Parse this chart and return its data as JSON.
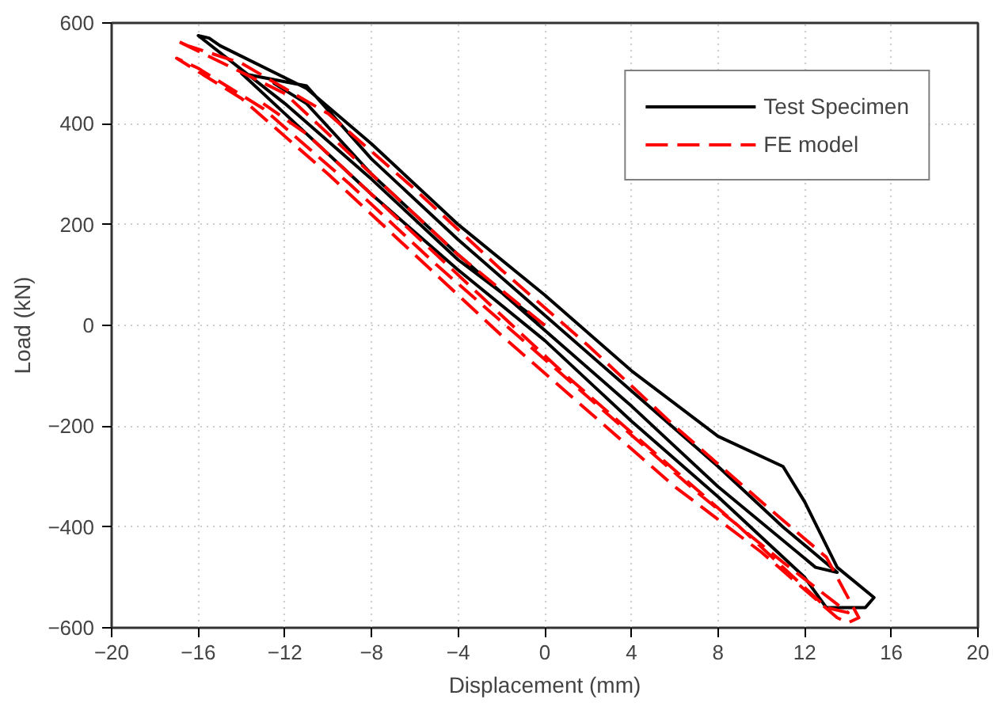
{
  "chart_data": {
    "type": "line",
    "xlabel": "Displacement (mm)",
    "ylabel": "Load (kN)",
    "xlim": [
      -20,
      20
    ],
    "ylim": [
      -600,
      600
    ],
    "xticks": [
      -20,
      -16,
      -12,
      -8,
      -4,
      0,
      4,
      8,
      12,
      16,
      20
    ],
    "yticks": [
      -600,
      -400,
      -200,
      0,
      200,
      400,
      600
    ],
    "grid": true,
    "legend": "top right",
    "series": [
      {
        "name": "Test Specimen",
        "color": "#000000",
        "line_style": "solid",
        "x": [
          0,
          -4,
          -8,
          -12,
          -16,
          -15.5,
          -15,
          -11,
          -8,
          -4,
          0,
          4,
          8,
          11,
          12,
          13.5,
          15.2,
          14.8,
          13,
          12,
          8,
          4,
          0,
          -4,
          -8,
          -12,
          -14,
          -11,
          -8,
          -4,
          0,
          4,
          8,
          11,
          13.5,
          12.5,
          8,
          4,
          0,
          -4,
          -8,
          -11,
          -12.5,
          -12
        ],
        "values": [
          0,
          130,
          290,
          440,
          575,
          570,
          555,
          470,
          360,
          200,
          60,
          -90,
          -220,
          -280,
          -350,
          -480,
          -540,
          -560,
          -560,
          -500,
          -340,
          -190,
          -30,
          110,
          260,
          420,
          500,
          475,
          330,
          170,
          20,
          -130,
          -280,
          -400,
          -490,
          -480,
          -320,
          -160,
          -10,
          140,
          300,
          440,
          480,
          470
        ]
      },
      {
        "name": "FE model",
        "color": "#ff0000",
        "line_style": "dashed",
        "x": [
          0,
          -4,
          -8,
          -12,
          -17,
          -16.5,
          -14,
          -10,
          -6,
          -2,
          2,
          6,
          10,
          13,
          14.5,
          14,
          13.5,
          10,
          6,
          2,
          -2,
          -6,
          -10,
          -14,
          -17,
          -16,
          -13,
          -9,
          -5,
          -1,
          3,
          7,
          11,
          14,
          13,
          9,
          5,
          1,
          -3,
          -7,
          -11,
          -13
        ],
        "values": [
          0,
          140,
          300,
          460,
          565,
          555,
          520,
          420,
          270,
          110,
          -40,
          -200,
          -350,
          -460,
          -580,
          -590,
          -580,
          -450,
          -320,
          -170,
          -20,
          140,
          300,
          450,
          530,
          510,
          430,
          280,
          120,
          -30,
          -180,
          -330,
          -470,
          -570,
          -560,
          -400,
          -250,
          -100,
          60,
          220,
          380,
          440
        ]
      }
    ]
  }
}
